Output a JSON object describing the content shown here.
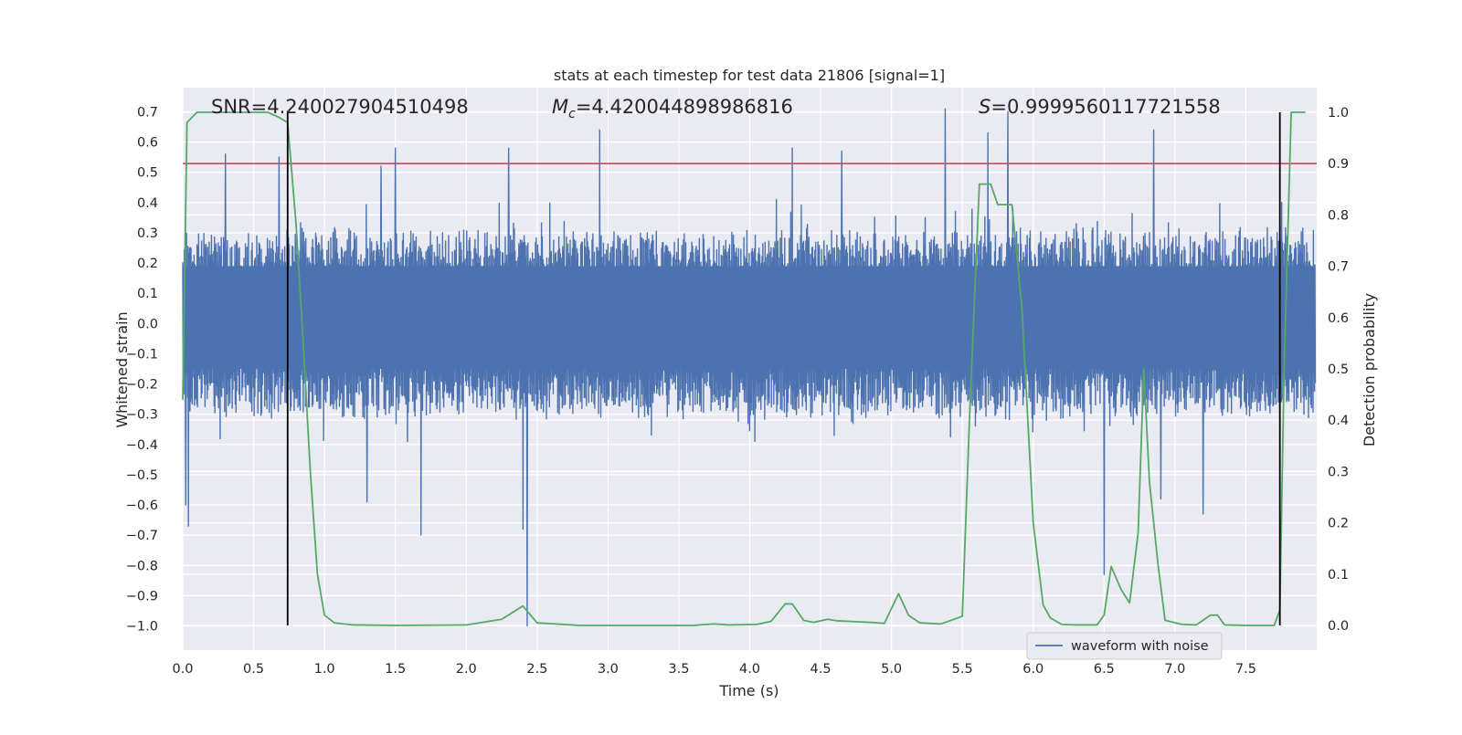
{
  "chart_data": {
    "type": "line",
    "title": "stats at each timestep for test data 21806 [signal=1]",
    "xlabel": "Time (s)",
    "ylabel_left": "Whitened strain",
    "ylabel_right": "Detection probability",
    "xlim": [
      0.0,
      8.0
    ],
    "ylim_left": [
      -1.08,
      0.78
    ],
    "ylim_right": [
      -0.048,
      1.048
    ],
    "grid": true,
    "x_ticks": [
      "0.0",
      "0.5",
      "1.0",
      "1.5",
      "2.0",
      "2.5",
      "3.0",
      "3.5",
      "4.0",
      "4.5",
      "5.0",
      "5.5",
      "6.0",
      "6.5",
      "7.0",
      "7.5"
    ],
    "y_ticks_left": [
      "0.7",
      "0.6",
      "0.5",
      "0.4",
      "0.3",
      "0.2",
      "0.1",
      "0.0",
      "−0.1",
      "−0.2",
      "−0.3",
      "−0.4",
      "−0.5",
      "−0.6",
      "−0.7",
      "−0.8",
      "−0.9",
      "−1.0"
    ],
    "y_ticks_right": [
      "1.0",
      "0.9",
      "0.8",
      "0.7",
      "0.6",
      "0.5",
      "0.4",
      "0.3",
      "0.2",
      "0.1",
      "0.0"
    ],
    "annotations": {
      "snr": "SNR=4.240027904510498",
      "mc_symbol": "M",
      "mc_subscript": "c",
      "mc_value": "=4.420044898986816",
      "s_symbol": "S",
      "s_value": "=0.9999560117721558"
    },
    "legend": {
      "placement": "lower-right",
      "entries": [
        "waveform with noise"
      ]
    },
    "colors": {
      "background": "#eaeaf2",
      "grid": "#ffffff",
      "waveform": "#4c72b0",
      "probability": "#55a868",
      "threshold": "#c44e52",
      "markers": "#000000"
    },
    "threshold_probability": 0.9,
    "vertical_markers_x": [
      0.74,
      7.74
    ],
    "waveform_envelope": {
      "typical_max": 0.32,
      "typical_min": -0.32,
      "spikes": [
        {
          "x": 0.02,
          "y": -0.6
        },
        {
          "x": 0.04,
          "y": -0.67
        },
        {
          "x": 0.3,
          "y": 0.56
        },
        {
          "x": 0.68,
          "y": 0.55
        },
        {
          "x": 1.3,
          "y": -0.59
        },
        {
          "x": 1.4,
          "y": 0.52
        },
        {
          "x": 1.5,
          "y": 0.58
        },
        {
          "x": 1.68,
          "y": -0.7
        },
        {
          "x": 2.3,
          "y": 0.58
        },
        {
          "x": 2.4,
          "y": -0.68
        },
        {
          "x": 2.43,
          "y": -1.0
        },
        {
          "x": 2.94,
          "y": 0.64
        },
        {
          "x": 4.3,
          "y": 0.58
        },
        {
          "x": 4.65,
          "y": 0.57
        },
        {
          "x": 5.38,
          "y": 0.71
        },
        {
          "x": 5.68,
          "y": 0.63
        },
        {
          "x": 5.82,
          "y": 0.7
        },
        {
          "x": 6.5,
          "y": -0.83
        },
        {
          "x": 6.85,
          "y": 0.64
        },
        {
          "x": 6.9,
          "y": -0.58
        },
        {
          "x": 7.2,
          "y": -0.63
        }
      ]
    },
    "probability": {
      "x": [
        0.0,
        0.03,
        0.1,
        0.2,
        0.4,
        0.6,
        0.68,
        0.74,
        0.8,
        0.85,
        0.9,
        0.95,
        1.0,
        1.07,
        1.2,
        1.5,
        2.0,
        2.25,
        2.4,
        2.5,
        2.8,
        3.3,
        3.6,
        3.75,
        3.85,
        4.05,
        4.15,
        4.25,
        4.3,
        4.38,
        4.45,
        4.55,
        4.62,
        4.7,
        4.85,
        4.95,
        5.05,
        5.12,
        5.2,
        5.35,
        5.5,
        5.55,
        5.62,
        5.7,
        5.75,
        5.8,
        5.85,
        5.92,
        6.0,
        6.07,
        6.12,
        6.2,
        6.3,
        6.45,
        6.5,
        6.55,
        6.62,
        6.68,
        6.74,
        6.78,
        6.82,
        6.88,
        6.93,
        7.05,
        7.15,
        7.25,
        7.3,
        7.35,
        7.5,
        7.7,
        7.74,
        7.77,
        7.82,
        7.92
      ],
      "y": [
        0.44,
        0.98,
        1.0,
        1.0,
        1.0,
        1.0,
        0.99,
        0.98,
        0.78,
        0.55,
        0.3,
        0.1,
        0.02,
        0.005,
        0.001,
        0.0,
        0.001,
        0.012,
        0.038,
        0.005,
        0.0,
        0.0,
        0.0,
        0.003,
        0.001,
        0.002,
        0.008,
        0.042,
        0.042,
        0.01,
        0.006,
        0.012,
        0.009,
        0.008,
        0.006,
        0.004,
        0.062,
        0.02,
        0.005,
        0.003,
        0.018,
        0.4,
        0.86,
        0.86,
        0.82,
        0.82,
        0.82,
        0.62,
        0.2,
        0.04,
        0.015,
        0.002,
        0.001,
        0.001,
        0.02,
        0.115,
        0.07,
        0.044,
        0.18,
        0.5,
        0.28,
        0.12,
        0.01,
        0.002,
        0.001,
        0.02,
        0.02,
        0.001,
        0.0,
        0.0,
        0.03,
        0.5,
        1.0,
        1.0
      ]
    }
  }
}
